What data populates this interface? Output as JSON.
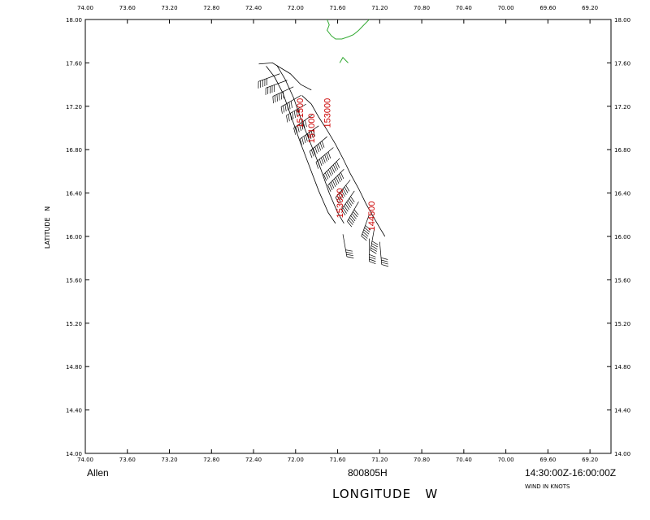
{
  "chart_data": {
    "type": "wind-barb-track",
    "storm_name": "Allen",
    "date_code": "800805H",
    "time_range": "14:30:00Z-16:00:00Z",
    "xlabel": "LONGITUDE   W",
    "ylabel": "LATITUDE   N",
    "wind_units": "WIND IN KNOTS",
    "xlim": [
      74.0,
      69.0
    ],
    "ylim": [
      14.0,
      18.0
    ],
    "x_ticks": [
      "74.00",
      "73.60",
      "73.20",
      "72.80",
      "72.40",
      "72.00",
      "71.60",
      "71.20",
      "70.80",
      "70.40",
      "70.00",
      "69.60",
      "69.20"
    ],
    "y_ticks": [
      "14.00",
      "14.40",
      "14.80",
      "15.20",
      "15.60",
      "16.00",
      "16.40",
      "16.80",
      "17.20",
      "17.60",
      "18.00"
    ],
    "coast_color": "#33aa33",
    "track_color": "#000000",
    "label_color": "#cc0000",
    "coastline": [
      [
        71.7,
        18.0
      ],
      [
        71.68,
        17.95
      ],
      [
        71.7,
        17.9
      ],
      [
        71.66,
        17.85
      ],
      [
        71.62,
        17.82
      ],
      [
        71.56,
        17.82
      ],
      [
        71.5,
        17.84
      ],
      [
        71.45,
        17.86
      ],
      [
        71.4,
        17.9
      ],
      [
        71.36,
        17.94
      ],
      [
        71.32,
        17.98
      ],
      [
        71.3,
        18.0
      ]
    ],
    "coast_bump": [
      [
        71.58,
        17.6
      ],
      [
        71.55,
        17.65
      ],
      [
        71.52,
        17.62
      ],
      [
        71.5,
        17.6
      ]
    ],
    "track_times": [
      {
        "label": "151500",
        "lon": 71.93,
        "lat": 17.0
      },
      {
        "label": "151000",
        "lon": 71.82,
        "lat": 16.86
      },
      {
        "label": "153000",
        "lon": 71.67,
        "lat": 17.0
      },
      {
        "label": "153000",
        "lon": 71.55,
        "lat": 16.17
      },
      {
        "label": "144500",
        "lon": 71.25,
        "lat": 16.05
      }
    ],
    "flight_legs": [
      [
        [
          72.28,
          17.57
        ],
        [
          72.2,
          17.47
        ],
        [
          72.12,
          17.32
        ],
        [
          72.04,
          17.1
        ],
        [
          71.96,
          16.88
        ],
        [
          71.87,
          16.65
        ],
        [
          71.78,
          16.42
        ],
        [
          71.69,
          16.22
        ],
        [
          71.62,
          16.12
        ]
      ],
      [
        [
          72.18,
          17.58
        ],
        [
          72.1,
          17.45
        ],
        [
          72.02,
          17.28
        ],
        [
          71.94,
          17.06
        ],
        [
          71.85,
          16.84
        ],
        [
          71.76,
          16.62
        ],
        [
          71.68,
          16.4
        ],
        [
          71.6,
          16.22
        ],
        [
          71.54,
          16.12
        ]
      ],
      [
        [
          72.35,
          17.59
        ],
        [
          72.22,
          17.6
        ],
        [
          72.05,
          17.5
        ],
        [
          71.95,
          17.4
        ],
        [
          71.85,
          17.35
        ]
      ],
      [
        [
          71.94,
          17.3
        ],
        [
          71.85,
          17.22
        ],
        [
          71.78,
          17.1
        ],
        [
          71.7,
          16.98
        ],
        [
          71.62,
          16.85
        ],
        [
          71.55,
          16.72
        ],
        [
          71.48,
          16.58
        ],
        [
          71.4,
          16.44
        ],
        [
          71.33,
          16.3
        ],
        [
          71.26,
          16.18
        ],
        [
          71.2,
          16.08
        ],
        [
          71.15,
          16.0
        ]
      ]
    ],
    "barbs": [
      {
        "lon": 72.15,
        "lat": 17.5,
        "dir": 250,
        "spd": 50
      },
      {
        "lon": 72.08,
        "lat": 17.44,
        "dir": 250,
        "spd": 55
      },
      {
        "lon": 72.02,
        "lat": 17.38,
        "dir": 245,
        "spd": 60
      },
      {
        "lon": 71.95,
        "lat": 17.3,
        "dir": 240,
        "spd": 65
      },
      {
        "lon": 71.9,
        "lat": 17.22,
        "dir": 240,
        "spd": 70
      },
      {
        "lon": 71.84,
        "lat": 17.12,
        "dir": 235,
        "spd": 75
      },
      {
        "lon": 71.78,
        "lat": 17.02,
        "dir": 235,
        "spd": 80
      },
      {
        "lon": 71.7,
        "lat": 16.92,
        "dir": 230,
        "spd": 85
      },
      {
        "lon": 71.64,
        "lat": 16.82,
        "dir": 230,
        "spd": 85
      },
      {
        "lon": 71.58,
        "lat": 16.72,
        "dir": 225,
        "spd": 90
      },
      {
        "lon": 71.54,
        "lat": 16.62,
        "dir": 225,
        "spd": 90
      },
      {
        "lon": 71.48,
        "lat": 16.52,
        "dir": 220,
        "spd": 85
      },
      {
        "lon": 71.44,
        "lat": 16.42,
        "dir": 215,
        "spd": 80
      },
      {
        "lon": 71.4,
        "lat": 16.32,
        "dir": 210,
        "spd": 70
      },
      {
        "lon": 71.3,
        "lat": 16.2,
        "dir": 200,
        "spd": 60
      },
      {
        "lon": 71.25,
        "lat": 16.08,
        "dir": 190,
        "spd": 55
      },
      {
        "lon": 71.3,
        "lat": 15.98,
        "dir": 180,
        "spd": 45
      },
      {
        "lon": 71.55,
        "lat": 16.02,
        "dir": 170,
        "spd": 40
      },
      {
        "lon": 71.2,
        "lat": 15.95,
        "dir": 175,
        "spd": 45
      }
    ]
  }
}
